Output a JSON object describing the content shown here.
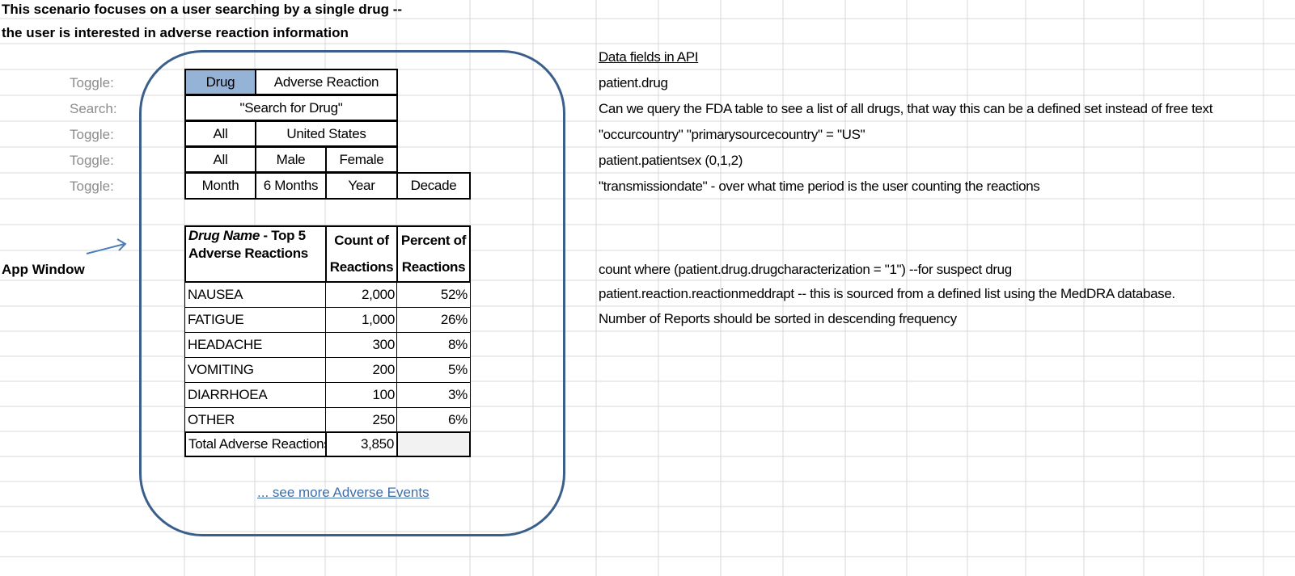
{
  "scenario": {
    "line1": "This scenario focuses on a user searching by a single drug --",
    "line2": "the user is interested in adverse reaction information"
  },
  "row_labels": [
    "Toggle:",
    "Search:",
    "Toggle:",
    "Toggle:",
    "Toggle:"
  ],
  "app_window_label": "App Window",
  "controls": {
    "mode": {
      "options": [
        "Drug",
        "Adverse Reaction"
      ],
      "selected": "Drug"
    },
    "search_placeholder": "\"Search for Drug\"",
    "country": {
      "options": [
        "All",
        "United States"
      ]
    },
    "sex": {
      "options": [
        "All",
        "Male",
        "Female"
      ]
    },
    "period": {
      "options": [
        "Month",
        "6 Months",
        "Year",
        "Decade"
      ]
    }
  },
  "table": {
    "header": {
      "name_italic": "Drug Name",
      "name_rest": " - Top 5",
      "name_line2": "Adverse Reactions",
      "count_line1": "Count of",
      "count_line2": "Reactions",
      "percent_line1": "Percent of",
      "percent_line2": "Reactions"
    },
    "rows": [
      {
        "name": "NAUSEA",
        "count": "2,000",
        "percent": "52%"
      },
      {
        "name": "FATIGUE",
        "count": "1,000",
        "percent": "26%"
      },
      {
        "name": "HEADACHE",
        "count": "300",
        "percent": "8%"
      },
      {
        "name": "VOMITING",
        "count": "200",
        "percent": "5%"
      },
      {
        "name": "DIARRHOEA",
        "count": "100",
        "percent": "3%"
      },
      {
        "name": "OTHER",
        "count": "250",
        "percent": "6%"
      }
    ],
    "total": {
      "name": "Total Adverse Reactions",
      "count": "3,850",
      "percent": ""
    }
  },
  "see_more": "... see more Adverse Events",
  "notes": {
    "heading": "Data fields in API",
    "drug": "patient.drug",
    "search": "Can we query the FDA table to see a list of all drugs, that way this can be a defined set instead of free text",
    "country": "\"occurcountry\" \"primarysourcecountry\" = \"US\"",
    "sex": "patient.patientsex (0,1,2)",
    "period": "\"transmissiondate\" - over what time period is the user counting the reactions",
    "count": "count where (patient.drug.drugcharacterization = \"1\") --for suspect drug",
    "reaction": "patient.reaction.reactionmeddrapt -- this is sourced from a defined list using the MedDRA database.",
    "sort": "Number of Reports should be sorted in descending frequency"
  },
  "colors": {
    "frame": "#3a5f8b",
    "selected_toggle": "#95b3d7",
    "link": "#3f6ea8",
    "gridline": "#d9d9d9",
    "row_label": "#8c8c8c",
    "total_percent_fill": "#f2f2f2"
  }
}
